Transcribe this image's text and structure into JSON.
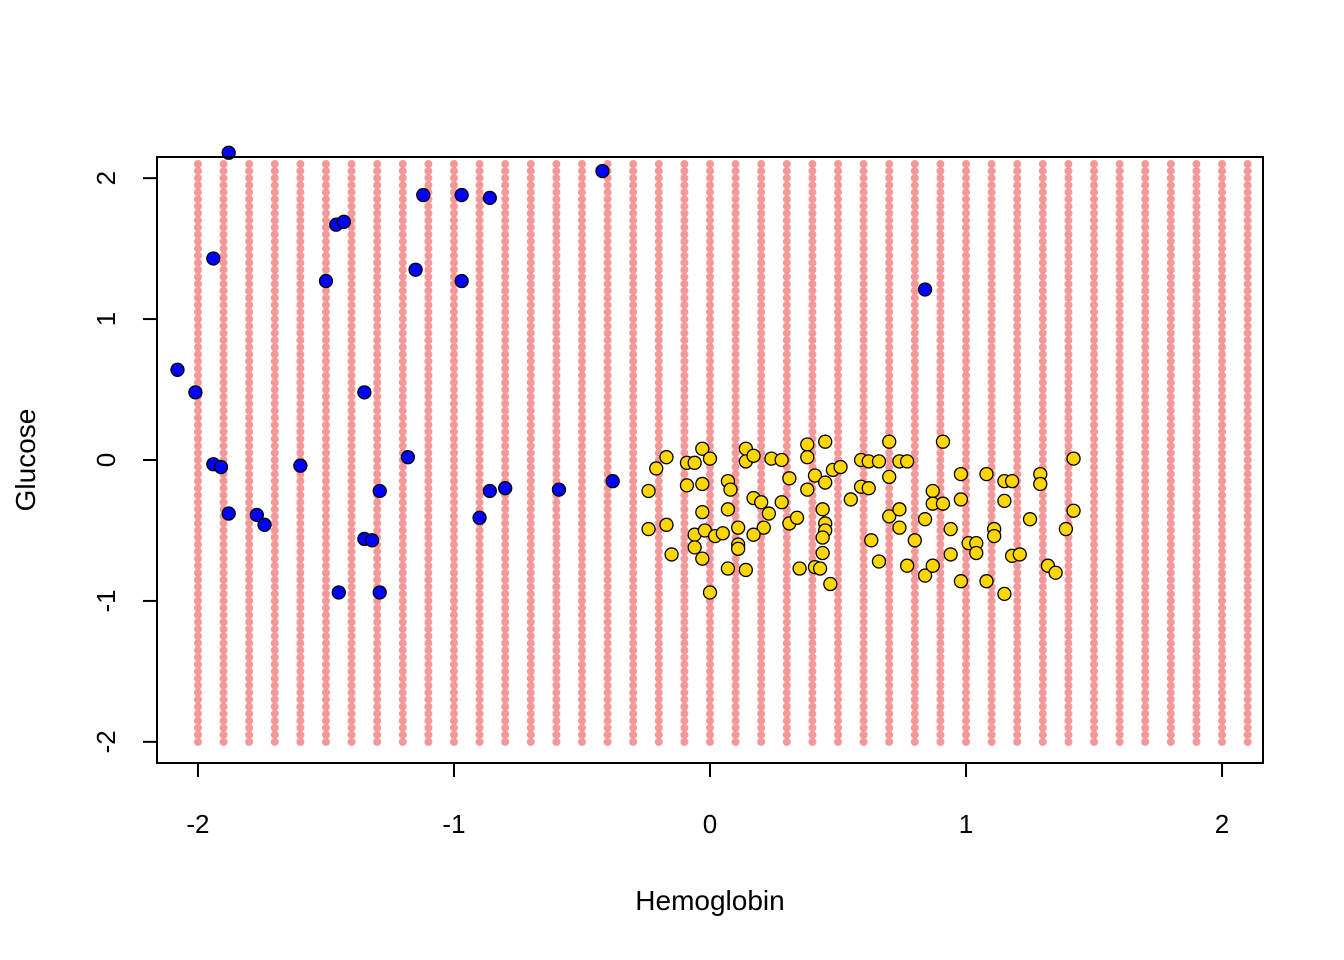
{
  "chart_data": {
    "type": "scatter",
    "title": "",
    "xlabel": "Hemoglobin",
    "ylabel": "Glucose",
    "xlim": [
      -2.16,
      2.16
    ],
    "ylim": [
      -2.15,
      2.15
    ],
    "x_ticks": [
      -2,
      -1,
      0,
      1,
      2
    ],
    "x_tick_labels": [
      "-2",
      "-1",
      "0",
      "1",
      "2"
    ],
    "y_ticks": [
      -2,
      -1,
      0,
      1,
      2
    ],
    "y_tick_labels": [
      "-2",
      "-1",
      "0",
      "1",
      "2"
    ],
    "grid": false,
    "background_grid": {
      "x_range": [
        -2.0,
        2.1
      ],
      "y_range": [
        -2.0,
        2.1
      ],
      "x_step": 0.1,
      "y_step": 0.05,
      "color": "#f4989a",
      "class": "predicted-1"
    },
    "series": [
      {
        "color": "#0000ff",
        "points": [
          [
            -1.88,
            2.18
          ],
          [
            -0.42,
            2.05
          ],
          [
            -1.12,
            1.88
          ],
          [
            -0.97,
            1.88
          ],
          [
            -0.86,
            1.86
          ],
          [
            -1.46,
            1.67
          ],
          [
            -1.43,
            1.69
          ],
          [
            -1.94,
            1.43
          ],
          [
            -1.5,
            1.27
          ],
          [
            -1.15,
            1.35
          ],
          [
            -0.97,
            1.27
          ],
          [
            0.84,
            1.21
          ],
          [
            -2.08,
            0.64
          ],
          [
            -2.01,
            0.48
          ],
          [
            -1.35,
            0.48
          ],
          [
            -1.94,
            -0.03
          ],
          [
            -1.91,
            -0.05
          ],
          [
            -1.6,
            -0.04
          ],
          [
            -1.18,
            0.02
          ],
          [
            -0.38,
            -0.15
          ],
          [
            -0.8,
            -0.2
          ],
          [
            -0.86,
            -0.22
          ],
          [
            -0.59,
            -0.21
          ],
          [
            -1.29,
            -0.22
          ],
          [
            -1.88,
            -0.38
          ],
          [
            -1.77,
            -0.39
          ],
          [
            -1.74,
            -0.46
          ],
          [
            -0.9,
            -0.41
          ],
          [
            -1.35,
            -0.56
          ],
          [
            -1.32,
            -0.57
          ],
          [
            -1.45,
            -0.94
          ],
          [
            -1.29,
            -0.94
          ]
        ]
      },
      {
        "color": "#ffd700",
        "points": [
          [
            -0.24,
            -0.22
          ],
          [
            -0.21,
            -0.06
          ],
          [
            -0.17,
            0.02
          ],
          [
            -0.09,
            -0.02
          ],
          [
            -0.06,
            -0.02
          ],
          [
            -0.03,
            0.08
          ],
          [
            -0.03,
            -0.17
          ],
          [
            0.0,
            0.01
          ],
          [
            -0.09,
            -0.18
          ],
          [
            -0.24,
            -0.49
          ],
          [
            -0.17,
            -0.46
          ],
          [
            -0.03,
            -0.37
          ],
          [
            -0.06,
            -0.53
          ],
          [
            -0.02,
            -0.5
          ],
          [
            -0.06,
            -0.62
          ],
          [
            -0.15,
            -0.67
          ],
          [
            -0.03,
            -0.7
          ],
          [
            0.0,
            -0.94
          ],
          [
            0.02,
            -0.54
          ],
          [
            0.05,
            -0.52
          ],
          [
            0.07,
            -0.35
          ],
          [
            0.07,
            -0.15
          ],
          [
            0.08,
            -0.21
          ],
          [
            0.11,
            -0.48
          ],
          [
            0.11,
            -0.6
          ],
          [
            0.11,
            -0.63
          ],
          [
            0.07,
            -0.77
          ],
          [
            0.14,
            -0.78
          ],
          [
            0.14,
            0.08
          ],
          [
            0.14,
            -0.01
          ],
          [
            0.17,
            0.03
          ],
          [
            0.17,
            -0.27
          ],
          [
            0.2,
            -0.3
          ],
          [
            0.23,
            -0.38
          ],
          [
            0.21,
            -0.48
          ],
          [
            0.17,
            -0.53
          ],
          [
            0.24,
            0.01
          ],
          [
            0.28,
            0.0
          ],
          [
            0.28,
            -0.3
          ],
          [
            0.31,
            -0.13
          ],
          [
            0.31,
            -0.45
          ],
          [
            0.34,
            -0.41
          ],
          [
            0.35,
            -0.77
          ],
          [
            0.38,
            0.11
          ],
          [
            0.38,
            0.02
          ],
          [
            0.38,
            -0.21
          ],
          [
            0.41,
            -0.11
          ],
          [
            0.41,
            -0.76
          ],
          [
            0.43,
            -0.77
          ],
          [
            0.45,
            0.13
          ],
          [
            0.45,
            -0.16
          ],
          [
            0.44,
            -0.35
          ],
          [
            0.45,
            -0.45
          ],
          [
            0.45,
            -0.5
          ],
          [
            0.44,
            -0.55
          ],
          [
            0.44,
            -0.66
          ],
          [
            0.47,
            -0.88
          ],
          [
            0.48,
            -0.07
          ],
          [
            0.51,
            -0.05
          ],
          [
            0.55,
            -0.28
          ],
          [
            0.59,
            0.0
          ],
          [
            0.59,
            -0.19
          ],
          [
            0.62,
            -0.01
          ],
          [
            0.62,
            -0.2
          ],
          [
            0.63,
            -0.57
          ],
          [
            0.66,
            -0.01
          ],
          [
            0.66,
            -0.72
          ],
          [
            0.7,
            0.13
          ],
          [
            0.7,
            -0.12
          ],
          [
            0.7,
            -0.4
          ],
          [
            0.74,
            -0.01
          ],
          [
            0.74,
            -0.35
          ],
          [
            0.74,
            -0.48
          ],
          [
            0.77,
            -0.01
          ],
          [
            0.77,
            -0.75
          ],
          [
            0.8,
            -0.57
          ],
          [
            0.84,
            -0.42
          ],
          [
            0.84,
            -0.82
          ],
          [
            0.87,
            -0.22
          ],
          [
            0.87,
            -0.31
          ],
          [
            0.87,
            -0.75
          ],
          [
            0.91,
            0.13
          ],
          [
            0.91,
            -0.31
          ],
          [
            0.94,
            -0.49
          ],
          [
            0.94,
            -0.67
          ],
          [
            0.98,
            -0.1
          ],
          [
            0.98,
            -0.28
          ],
          [
            0.98,
            -0.86
          ],
          [
            1.01,
            -0.59
          ],
          [
            1.04,
            -0.59
          ],
          [
            1.04,
            -0.66
          ],
          [
            1.08,
            -0.1
          ],
          [
            1.08,
            -0.86
          ],
          [
            1.11,
            -0.49
          ],
          [
            1.11,
            -0.54
          ],
          [
            1.15,
            -0.15
          ],
          [
            1.15,
            -0.29
          ],
          [
            1.15,
            -0.95
          ],
          [
            1.18,
            -0.15
          ],
          [
            1.18,
            -0.68
          ],
          [
            1.21,
            -0.67
          ],
          [
            1.25,
            -0.42
          ],
          [
            1.29,
            -0.1
          ],
          [
            1.29,
            -0.17
          ],
          [
            1.32,
            -0.75
          ],
          [
            1.35,
            -0.8
          ],
          [
            1.39,
            -0.49
          ],
          [
            1.42,
            0.01
          ],
          [
            1.42,
            -0.36
          ]
        ]
      }
    ]
  }
}
